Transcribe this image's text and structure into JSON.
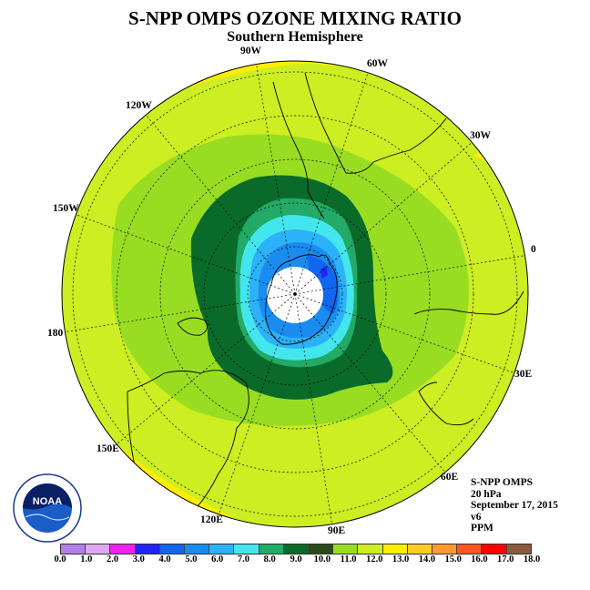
{
  "title": "S-NPP OMPS OZONE MIXING RATIO",
  "subtitle": "Southern Hemisphere",
  "longitude_labels": {
    "lon_90w": "90W",
    "lon_60w": "60W",
    "lon_30w": "30W",
    "lon_0": "0",
    "lon_30e": "30E",
    "lon_60e": "60E",
    "lon_90e": "90E",
    "lon_120e": "120E",
    "lon_150e": "150E",
    "lon_180": "180",
    "lon_150w": "150W",
    "lon_120w": "120W"
  },
  "info": {
    "instrument": "S-NPP OMPS",
    "level": "20 hPa",
    "date": "September 17, 2015",
    "version": "v6",
    "units": "PPM"
  },
  "logo_text": "NOAA",
  "colorbar": {
    "ticks": [
      "0.0",
      "1.0",
      "2.0",
      "3.0",
      "4.0",
      "5.0",
      "6.0",
      "7.0",
      "8.0",
      "9.0",
      "10.0",
      "11.0",
      "12.0",
      "13.0",
      "14.0",
      "15.0",
      "16.0",
      "17.0",
      "18.0"
    ],
    "colors": [
      "#b37fe8",
      "#dda8f0",
      "#ee22ee",
      "#2222ff",
      "#1166ee",
      "#1a8cf0",
      "#2cb2f8",
      "#44e6ee",
      "#22aa66",
      "#0a6a2a",
      "#2a4a1a",
      "#99dd22",
      "#ccee22",
      "#ffee00",
      "#ffcc22",
      "#ff9933",
      "#ff5522",
      "#ff0000",
      "#8a5a3a"
    ]
  }
}
